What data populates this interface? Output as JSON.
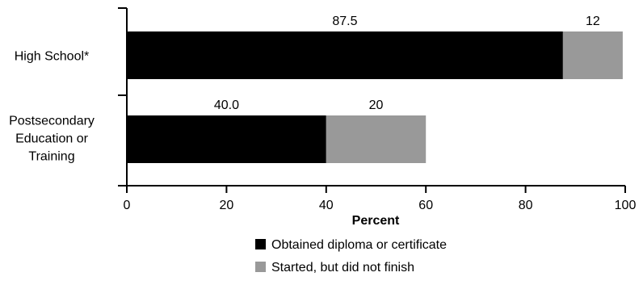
{
  "chart_data": {
    "type": "bar",
    "orientation": "horizontal",
    "stacked": true,
    "categories": [
      "High School*",
      "Postsecondary Education or Training"
    ],
    "category_lines": [
      [
        "High School*"
      ],
      [
        "Postsecondary",
        "Education or",
        "Training"
      ]
    ],
    "series": [
      {
        "name": "Obtained diploma or certificate",
        "values": [
          87.5,
          40.0
        ],
        "labels": [
          "87.5",
          "40.0"
        ],
        "color": "#000000"
      },
      {
        "name": "Started, but did not finish",
        "values": [
          12,
          20
        ],
        "labels": [
          "12",
          "20"
        ],
        "color": "#999999"
      }
    ],
    "xlabel": "Percent",
    "ylabel": "",
    "xlim": [
      0,
      100
    ],
    "xticks": [
      0,
      20,
      40,
      60,
      80,
      100
    ],
    "grid": false,
    "legend_position": "bottom"
  }
}
